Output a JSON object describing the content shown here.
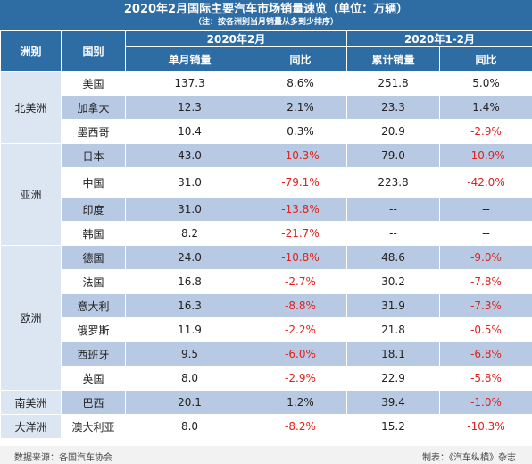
{
  "title": "2020年2月国际主要汽车市场销量速览（单位：万辆）",
  "note": "（注：按各洲别当月销量从多到少排序）",
  "headers": {
    "region": "洲别",
    "country": "国别",
    "period1": "2020年2月",
    "period2": "2020年1-2月",
    "monthly_sales": "单月销量",
    "yoy1": "同比",
    "cumulative_sales": "累计销量",
    "yoy2": "同比"
  },
  "regions": [
    "北美洲",
    "亚洲",
    "欧洲",
    "南美洲",
    "大洋洲"
  ],
  "rows": [
    {
      "country": "美国",
      "monthly": "137.3",
      "yoy": "8.6%",
      "cumulative": "251.8",
      "cum_yoy": "5.0%"
    },
    {
      "country": "加拿大",
      "monthly": "12.3",
      "yoy": "2.1%",
      "cumulative": "23.3",
      "cum_yoy": "1.4%"
    },
    {
      "country": "墨西哥",
      "monthly": "10.4",
      "yoy": "0.3%",
      "cumulative": "20.9",
      "cum_yoy": "-2.9%"
    },
    {
      "country": "日本",
      "monthly": "43.0",
      "yoy": "-10.3%",
      "cumulative": "79.0",
      "cum_yoy": "-10.9%"
    },
    {
      "country": "中国",
      "monthly": "31.0",
      "yoy": "-79.1%",
      "cumulative": "223.8",
      "cum_yoy": "-42.0%"
    },
    {
      "country": "印度",
      "monthly": "31.0",
      "yoy": "-13.8%",
      "cumulative": "--",
      "cum_yoy": "--"
    },
    {
      "country": "韩国",
      "monthly": "8.2",
      "yoy": "-21.7%",
      "cumulative": "--",
      "cum_yoy": "--"
    },
    {
      "country": "德国",
      "monthly": "24.0",
      "yoy": "-10.8%",
      "cumulative": "48.6",
      "cum_yoy": "-9.0%"
    },
    {
      "country": "法国",
      "monthly": "16.8",
      "yoy": "-2.7%",
      "cumulative": "30.2",
      "cum_yoy": "-7.8%"
    },
    {
      "country": "意大利",
      "monthly": "16.3",
      "yoy": "-8.8%",
      "cumulative": "31.9",
      "cum_yoy": "-7.3%"
    },
    {
      "country": "俄罗斯",
      "monthly": "11.9",
      "yoy": "-2.2%",
      "cumulative": "21.8",
      "cum_yoy": "-0.5%"
    },
    {
      "country": "西班牙",
      "monthly": "9.5",
      "yoy": "-6.0%",
      "cumulative": "18.1",
      "cum_yoy": "-6.8%"
    },
    {
      "country": "英国",
      "monthly": "8.0",
      "yoy": "-2.9%",
      "cumulative": "22.9",
      "cum_yoy": "-5.8%"
    },
    {
      "country": "巴西",
      "monthly": "20.1",
      "yoy": "1.2%",
      "cumulative": "39.4",
      "cum_yoy": "-1.0%"
    },
    {
      "country": "澳大利亚",
      "monthly": "8.0",
      "yoy": "-8.2%",
      "cumulative": "15.2",
      "cum_yoy": "-10.3%"
    }
  ],
  "footer": {
    "source": "数据来源：各国汽车协会",
    "maker": "制表：《汽车纵横》杂志"
  },
  "colors": {
    "header_blue": "#2e6ca4",
    "row_alt": "#b7c9e3",
    "negative_red": "#e0211c"
  }
}
